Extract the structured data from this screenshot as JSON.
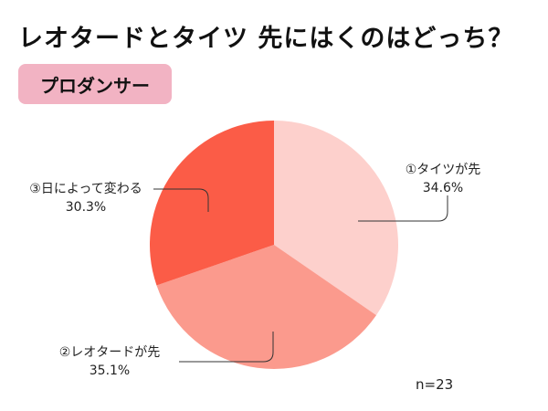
{
  "title": "レオタードとタイツ 先にはくのはどっち？",
  "badge": "プロダンサー",
  "sample_size": "n=23",
  "chart_data": {
    "type": "pie",
    "title": "レオタードとタイツ 先にはくのはどっち？",
    "subtitle": "プロダンサー",
    "categories": [
      "①タイツが先",
      "②レオタードが先",
      "③日によって変わる"
    ],
    "values": [
      34.6,
      35.1,
      30.3
    ],
    "colors": [
      "#fdd0cc",
      "#fb9a8d",
      "#fb5c47"
    ],
    "labels": [
      "34.6%",
      "35.1%",
      "30.3%"
    ],
    "start_angle": "12 o'clock, clockwise",
    "annotation": "n=23",
    "legend": "none (leader-line labels)"
  },
  "labels": [
    {
      "name": "①タイツが先",
      "pct": "34.6%"
    },
    {
      "name": "②レオタードが先",
      "pct": "35.1%"
    },
    {
      "name": "③日によって変わる",
      "pct": "30.3%"
    }
  ]
}
